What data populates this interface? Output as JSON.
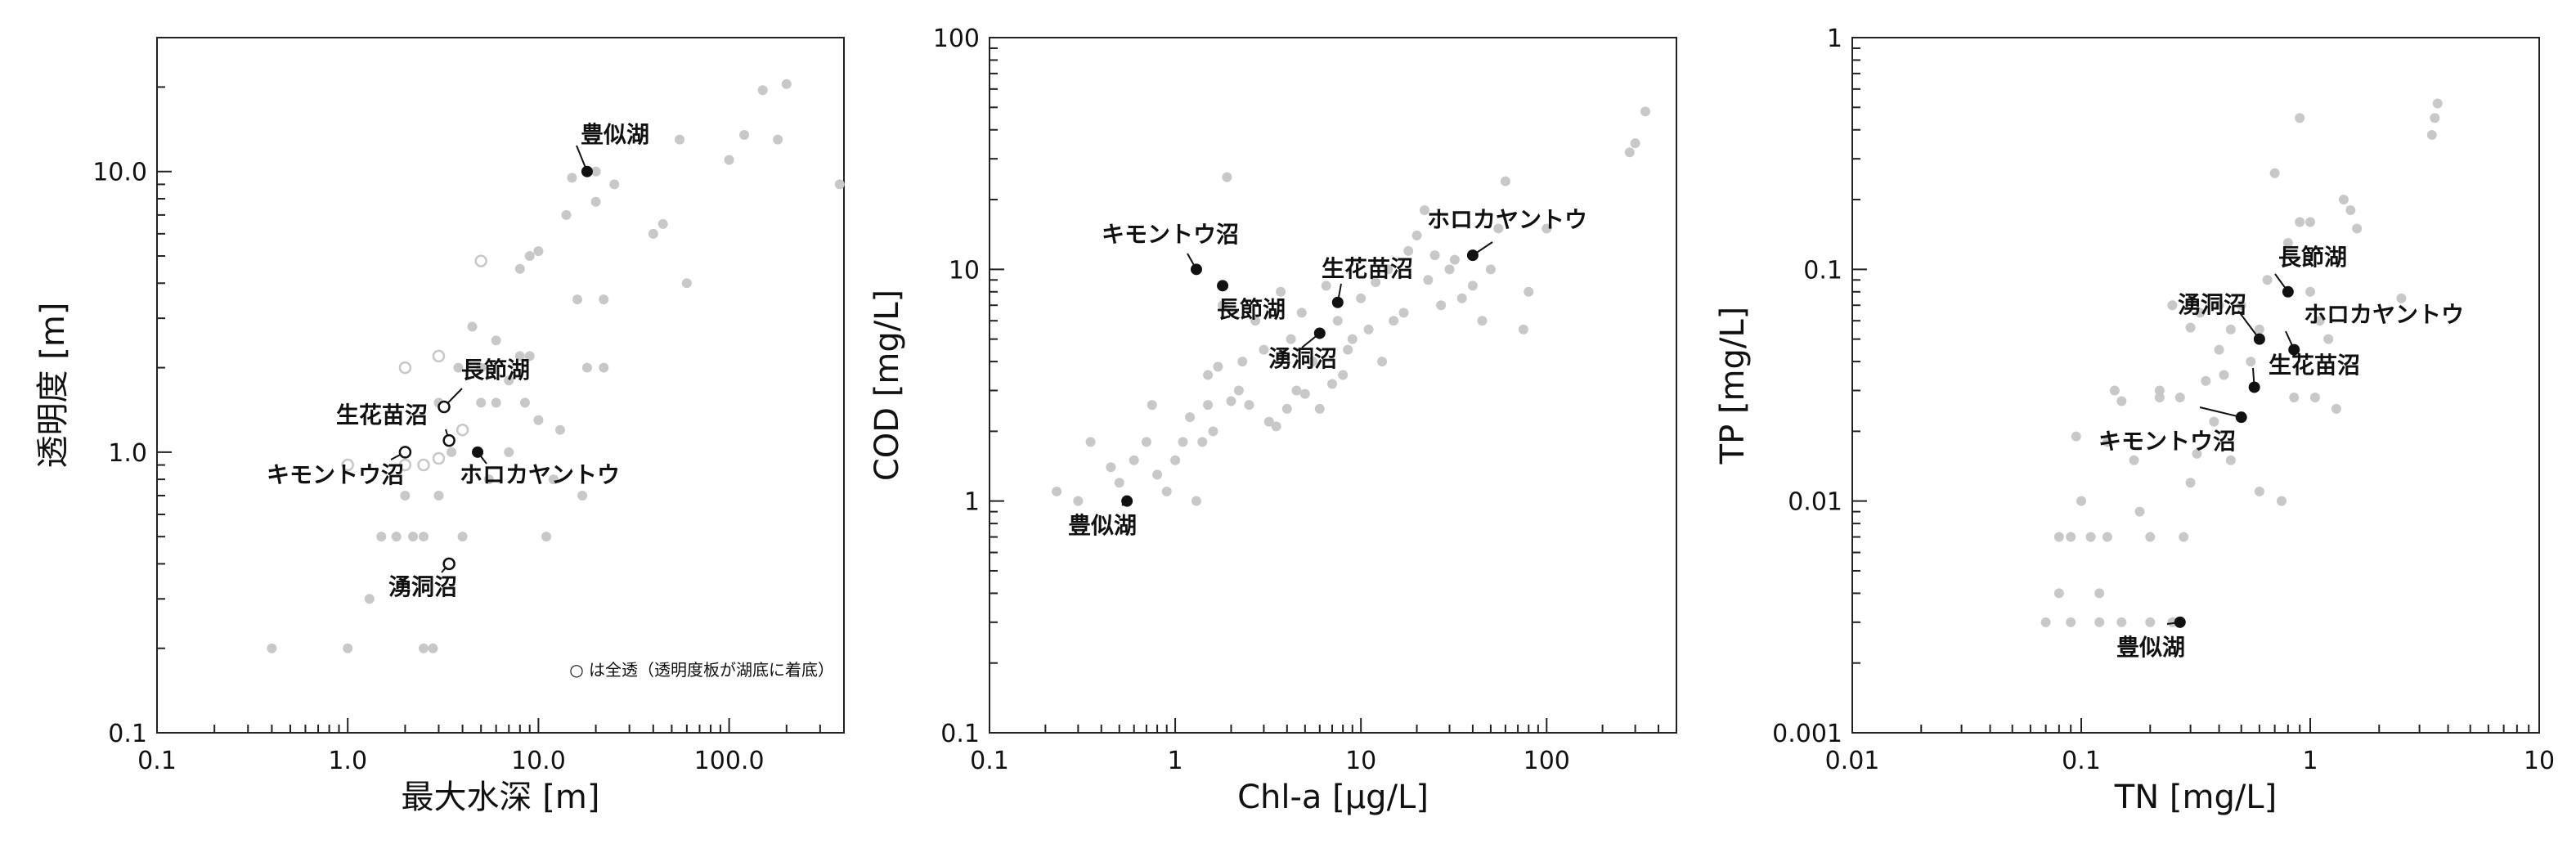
{
  "chart_data": [
    {
      "type": "scatter",
      "xlabel": "最大水深 [m]",
      "ylabel": "透明度 [m]",
      "xscale": "log",
      "yscale": "log",
      "xlim": [
        0.1,
        400
      ],
      "ylim": [
        0.1,
        30
      ],
      "xticks": [
        0.1,
        1,
        10,
        100
      ],
      "xtick_labels": [
        "0.1",
        "1.0",
        "10.0",
        "100.0"
      ],
      "yticks": [
        0.1,
        1,
        10
      ],
      "ytick_labels": [
        "0.1",
        "1.0",
        "10.0"
      ],
      "note": "○ は全透（透明度板が湖底に着底）",
      "background_points": [
        [
          0.4,
          0.2
        ],
        [
          1.0,
          0.2
        ],
        [
          1.3,
          0.3
        ],
        [
          1.5,
          0.5
        ],
        [
          1.8,
          0.5
        ],
        [
          2.0,
          0.7
        ],
        [
          2.2,
          0.5
        ],
        [
          2.5,
          0.5
        ],
        [
          2.5,
          0.2
        ],
        [
          2.8,
          0.2
        ],
        [
          3.0,
          0.7
        ],
        [
          3.0,
          1.5
        ],
        [
          3.5,
          1.0
        ],
        [
          3.8,
          2.0
        ],
        [
          4.0,
          0.5
        ],
        [
          4.5,
          2.8
        ],
        [
          5.0,
          1.5
        ],
        [
          5.0,
          2.0
        ],
        [
          5.5,
          0.8
        ],
        [
          6.0,
          1.5
        ],
        [
          6.0,
          2.5
        ],
        [
          7.0,
          1.0
        ],
        [
          7.0,
          1.8
        ],
        [
          8.0,
          2.2
        ],
        [
          8.5,
          1.5
        ],
        [
          9.0,
          2.2
        ],
        [
          8.0,
          4.5
        ],
        [
          9.0,
          5.0
        ],
        [
          10.0,
          5.2
        ],
        [
          10.0,
          1.3
        ],
        [
          11.0,
          0.5
        ],
        [
          12.0,
          0.8
        ],
        [
          13.0,
          1.2
        ],
        [
          14.0,
          7.0
        ],
        [
          15.0,
          9.5
        ],
        [
          16.0,
          3.5
        ],
        [
          17.0,
          0.7
        ],
        [
          18.0,
          2.0
        ],
        [
          20.0,
          7.8
        ],
        [
          20.0,
          10.0
        ],
        [
          22.0,
          3.5
        ],
        [
          22.0,
          2.0
        ],
        [
          25.0,
          9.0
        ],
        [
          40.0,
          6.0
        ],
        [
          45.0,
          6.5
        ],
        [
          55.0,
          13.0
        ],
        [
          60.0,
          4.0
        ],
        [
          100.0,
          11.0
        ],
        [
          120.0,
          13.5
        ],
        [
          150.0,
          19.5
        ],
        [
          180.0,
          13.0
        ],
        [
          200.0,
          20.5
        ],
        [
          380.0,
          9.0
        ]
      ],
      "open_points": [
        [
          1.0,
          0.9
        ],
        [
          2.0,
          0.9
        ],
        [
          2.0,
          2.0
        ],
        [
          2.5,
          0.9
        ],
        [
          3.0,
          2.2
        ],
        [
          3.0,
          0.95
        ],
        [
          4.0,
          1.2
        ],
        [
          5.0,
          4.8
        ]
      ],
      "highlights": [
        {
          "label": "豊似湖",
          "x": 18.0,
          "y": 10.0,
          "open": false
        },
        {
          "label": "長節湖",
          "x": 3.2,
          "y": 1.45,
          "open": true
        },
        {
          "label": "生花苗沼",
          "x": 3.4,
          "y": 1.1,
          "open": true
        },
        {
          "label": "キモントウ沼",
          "x": 2.0,
          "y": 1.0,
          "open": true
        },
        {
          "label": "ホロカヤントウ",
          "x": 4.8,
          "y": 1.0,
          "open": false
        },
        {
          "label": "湧洞沼",
          "x": 3.4,
          "y": 0.4,
          "open": true
        }
      ]
    },
    {
      "type": "scatter",
      "xlabel": "Chl-a [µg/L]",
      "ylabel": "COD [mg/L]",
      "xscale": "log",
      "yscale": "log",
      "xlim": [
        0.1,
        500
      ],
      "ylim": [
        0.1,
        100
      ],
      "xticks": [
        0.1,
        1,
        10,
        100
      ],
      "xtick_labels": [
        "0.1",
        "1",
        "10",
        "100"
      ],
      "yticks": [
        0.1,
        1,
        10,
        100
      ],
      "ytick_labels": [
        "0.1",
        "1",
        "10",
        "100"
      ],
      "background_points": [
        [
          0.23,
          1.1
        ],
        [
          0.3,
          1.0
        ],
        [
          0.35,
          1.8
        ],
        [
          0.45,
          1.4
        ],
        [
          0.5,
          1.2
        ],
        [
          0.6,
          1.5
        ],
        [
          0.7,
          1.8
        ],
        [
          0.75,
          2.6
        ],
        [
          0.8,
          1.3
        ],
        [
          0.9,
          1.1
        ],
        [
          1.0,
          1.5
        ],
        [
          1.1,
          1.8
        ],
        [
          1.2,
          2.3
        ],
        [
          1.3,
          1.0
        ],
        [
          1.4,
          1.8
        ],
        [
          1.5,
          2.6
        ],
        [
          1.5,
          3.5
        ],
        [
          1.6,
          2.0
        ],
        [
          1.7,
          3.8
        ],
        [
          1.8,
          7.0
        ],
        [
          1.9,
          25.0
        ],
        [
          2.0,
          2.7
        ],
        [
          2.2,
          3.0
        ],
        [
          2.3,
          4.0
        ],
        [
          2.5,
          2.6
        ],
        [
          2.7,
          6.0
        ],
        [
          3.0,
          4.5
        ],
        [
          3.2,
          2.2
        ],
        [
          3.5,
          2.1
        ],
        [
          3.7,
          8.0
        ],
        [
          4.0,
          2.5
        ],
        [
          4.2,
          5.0
        ],
        [
          4.5,
          3.0
        ],
        [
          4.8,
          6.5
        ],
        [
          5.0,
          2.9
        ],
        [
          5.5,
          4.0
        ],
        [
          6.0,
          2.5
        ],
        [
          6.5,
          8.5
        ],
        [
          7.0,
          3.2
        ],
        [
          7.5,
          6.0
        ],
        [
          8.0,
          3.5
        ],
        [
          8.5,
          4.5
        ],
        [
          9.0,
          5.0
        ],
        [
          10.0,
          7.5
        ],
        [
          11.0,
          5.5
        ],
        [
          12.0,
          8.8
        ],
        [
          13.0,
          4.0
        ],
        [
          14.0,
          10.0
        ],
        [
          15.0,
          6.0
        ],
        [
          17.0,
          6.5
        ],
        [
          18.0,
          12.0
        ],
        [
          20.0,
          14.0
        ],
        [
          22.0,
          18.0
        ],
        [
          23.0,
          9.0
        ],
        [
          25.0,
          11.5
        ],
        [
          27.0,
          7.0
        ],
        [
          30.0,
          10.0
        ],
        [
          32.0,
          11.0
        ],
        [
          35.0,
          7.5
        ],
        [
          40.0,
          8.5
        ],
        [
          45.0,
          6.0
        ],
        [
          50.0,
          10.0
        ],
        [
          55.0,
          15.0
        ],
        [
          60.0,
          24.0
        ],
        [
          75.0,
          5.5
        ],
        [
          80.0,
          8.0
        ],
        [
          100.0,
          15.0
        ],
        [
          280.0,
          32.0
        ],
        [
          300.0,
          35.0
        ],
        [
          340.0,
          48.0
        ]
      ],
      "highlights": [
        {
          "label": "キモントウ沼",
          "x": 1.3,
          "y": 10.0
        },
        {
          "label": "長節湖",
          "x": 1.8,
          "y": 8.5
        },
        {
          "label": "生花苗沼",
          "x": 7.5,
          "y": 7.2
        },
        {
          "label": "ホロカヤントウ",
          "x": 40.0,
          "y": 11.5
        },
        {
          "label": "湧洞沼",
          "x": 6.0,
          "y": 5.3
        },
        {
          "label": "豊似湖",
          "x": 0.55,
          "y": 1.0
        }
      ]
    },
    {
      "type": "scatter",
      "xlabel": "TN [mg/L]",
      "ylabel": "TP [mg/L]",
      "xscale": "log",
      "yscale": "log",
      "xlim": [
        0.01,
        10
      ],
      "ylim": [
        0.001,
        1
      ],
      "xticks": [
        0.01,
        0.1,
        1,
        10
      ],
      "xtick_labels": [
        "0.01",
        "0.1",
        "1",
        "10"
      ],
      "yticks": [
        0.001,
        0.01,
        0.1,
        1
      ],
      "ytick_labels": [
        "0.001",
        "0.01",
        "0.1",
        "1"
      ],
      "background_points": [
        [
          0.07,
          0.003
        ],
        [
          0.08,
          0.004
        ],
        [
          0.08,
          0.007
        ],
        [
          0.09,
          0.007
        ],
        [
          0.09,
          0.003
        ],
        [
          0.095,
          0.019
        ],
        [
          0.1,
          0.01
        ],
        [
          0.11,
          0.007
        ],
        [
          0.12,
          0.004
        ],
        [
          0.12,
          0.003
        ],
        [
          0.13,
          0.007
        ],
        [
          0.13,
          0.018
        ],
        [
          0.14,
          0.03
        ],
        [
          0.15,
          0.027
        ],
        [
          0.15,
          0.003
        ],
        [
          0.17,
          0.015
        ],
        [
          0.18,
          0.009
        ],
        [
          0.2,
          0.007
        ],
        [
          0.2,
          0.003
        ],
        [
          0.22,
          0.028
        ],
        [
          0.22,
          0.03
        ],
        [
          0.25,
          0.07
        ],
        [
          0.25,
          0.003
        ],
        [
          0.27,
          0.028
        ],
        [
          0.28,
          0.007
        ],
        [
          0.3,
          0.012
        ],
        [
          0.3,
          0.056
        ],
        [
          0.32,
          0.016
        ],
        [
          0.33,
          0.065
        ],
        [
          0.35,
          0.033
        ],
        [
          0.38,
          0.022
        ],
        [
          0.4,
          0.07
        ],
        [
          0.4,
          0.045
        ],
        [
          0.42,
          0.035
        ],
        [
          0.45,
          0.055
        ],
        [
          0.45,
          0.015
        ],
        [
          0.5,
          0.07
        ],
        [
          0.55,
          0.04
        ],
        [
          0.6,
          0.011
        ],
        [
          0.6,
          0.055
        ],
        [
          0.65,
          0.09
        ],
        [
          0.7,
          0.26
        ],
        [
          0.75,
          0.01
        ],
        [
          0.8,
          0.13
        ],
        [
          0.85,
          0.028
        ],
        [
          0.9,
          0.16
        ],
        [
          0.9,
          0.45
        ],
        [
          1.0,
          0.16
        ],
        [
          1.0,
          0.08
        ],
        [
          1.05,
          0.028
        ],
        [
          1.1,
          0.06
        ],
        [
          1.2,
          0.05
        ],
        [
          1.3,
          0.025
        ],
        [
          1.4,
          0.2
        ],
        [
          1.5,
          0.18
        ],
        [
          1.6,
          0.15
        ],
        [
          2.5,
          0.075
        ],
        [
          3.5,
          0.45
        ],
        [
          3.6,
          0.52
        ],
        [
          3.4,
          0.38
        ]
      ],
      "highlights": [
        {
          "label": "長節湖",
          "x": 0.8,
          "y": 0.08
        },
        {
          "label": "湧洞沼",
          "x": 0.6,
          "y": 0.05
        },
        {
          "label": "ホロカヤントウ",
          "x": 0.85,
          "y": 0.045
        },
        {
          "label": "生花苗沼",
          "x": 0.57,
          "y": 0.031
        },
        {
          "label": "キモントウ沼",
          "x": 0.5,
          "y": 0.023
        },
        {
          "label": "豊似湖",
          "x": 0.27,
          "y": 0.003
        }
      ]
    }
  ]
}
